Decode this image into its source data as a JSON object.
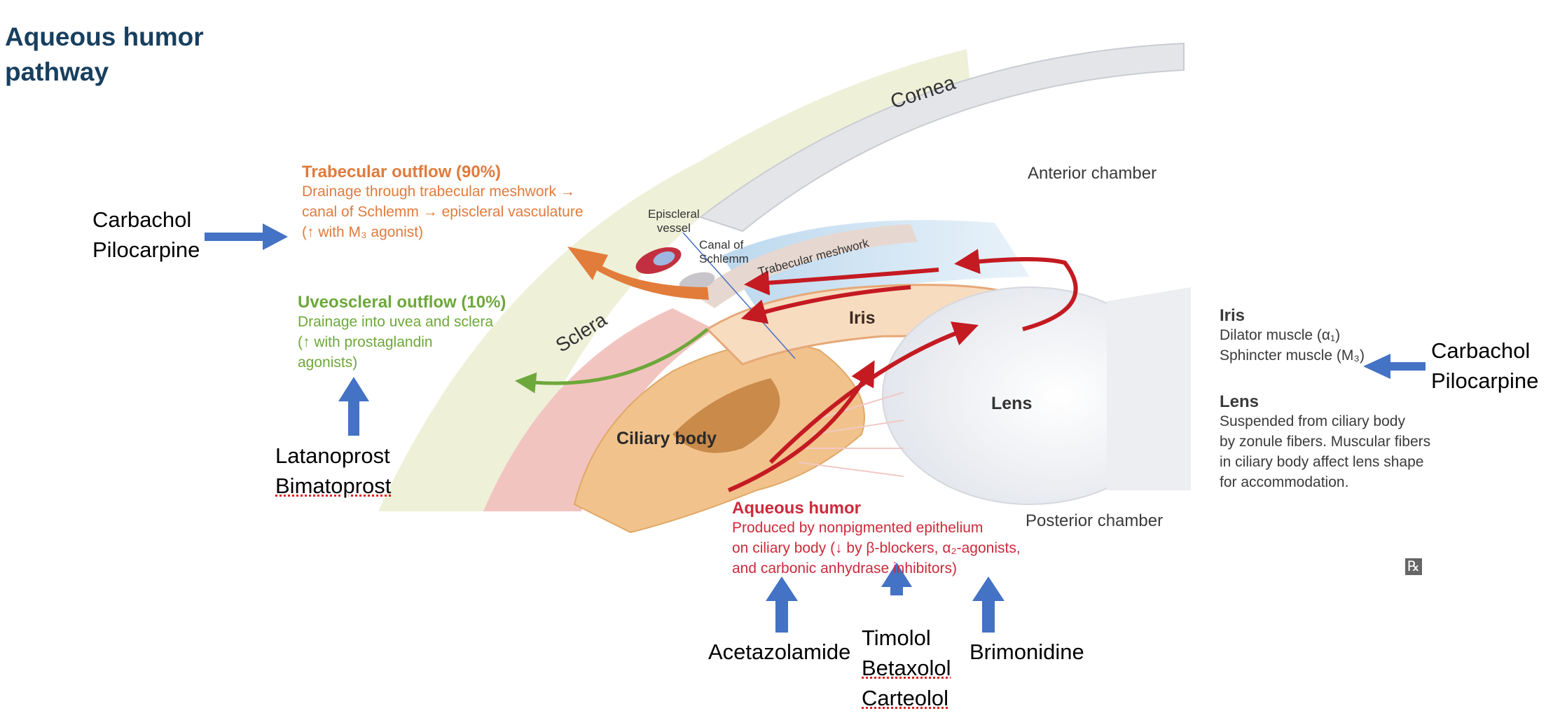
{
  "title": [
    "Aqueous humor",
    "pathway"
  ],
  "structures": {
    "cornea": "Cornea",
    "sclera": "Sclera",
    "iris": "Iris",
    "lens": "Lens",
    "ciliary_body": "Ciliary body",
    "anterior_chamber": "Anterior chamber",
    "posterior_chamber": "Posterior chamber",
    "trabecular_meshwork": "Trabecular meshwork",
    "episcleral_vessel": [
      "Episcleral",
      "vessel"
    ],
    "canal_of_schlemm": [
      "Canal of",
      "Schlemm"
    ]
  },
  "trabecular": {
    "heading": "Trabecular outflow (90%)",
    "lines": [
      "Drainage through trabecular meshwork →",
      "canal of Schlemm → episcleral vasculature",
      "(↑ with M₃ agonist)"
    ],
    "color": "#e07b3d"
  },
  "uveoscleral": {
    "heading": "Uveoscleral outflow (10%)",
    "lines": [
      "Drainage into uvea and sclera",
      "(↑ with prostaglandin",
      "agonists)"
    ],
    "color": "#6da83a"
  },
  "aqueous": {
    "heading": "Aqueous humor",
    "lines": [
      "Produced by nonpigmented epithelium",
      "on ciliary body (↓ by β-blockers, α₂-agonists,",
      "and carbonic anhydrase inhibitors)"
    ],
    "color": "#cc2a3b"
  },
  "iris_note": {
    "heading": "Iris",
    "lines": [
      "Dilator muscle (α₁)",
      "Sphincter muscle (M₃)"
    ]
  },
  "lens_note": {
    "heading": "Lens",
    "lines": [
      "Suspended from ciliary body",
      "by zonule fibers. Muscular fibers",
      "in ciliary body affect lens shape",
      "for accommodation."
    ]
  },
  "rx_symbol": "℞",
  "drugs": {
    "m3_left": [
      "Carbachol",
      "Pilocarpine"
    ],
    "m3_right": [
      "Carbachol",
      "Pilocarpine"
    ],
    "prostaglandins": [
      "Latanoprost",
      "Bimatoprost"
    ],
    "cai": "Acetazolamide",
    "beta_blockers": [
      "Timolol",
      "Betaxolol",
      "Carteolol"
    ],
    "alpha2": "Brimonidine"
  },
  "colors": {
    "arrow_blue": "#4472c4",
    "outflow_red": "#c41a22",
    "title": "#173f5f"
  }
}
